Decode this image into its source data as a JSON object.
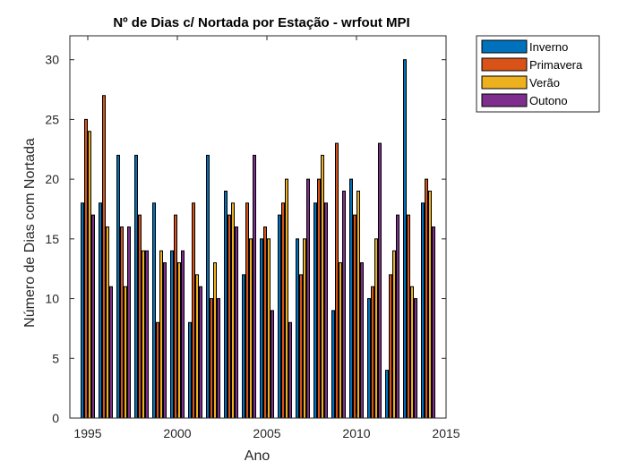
{
  "chart_data": {
    "type": "bar",
    "title": "Nº de Dias c/ Nortada por Estação - wrfout MPI",
    "xlabel": "Ano",
    "ylabel": "Número de Dias com Nortada",
    "xlim": [
      1994,
      2015
    ],
    "ylim": [
      0,
      32
    ],
    "xticks": [
      "1995",
      "2000",
      "2005",
      "2010",
      "2015"
    ],
    "yticks": [
      "0",
      "5",
      "10",
      "15",
      "20",
      "25",
      "30"
    ],
    "legend_position": "top-right outside",
    "grid": false,
    "categories": [
      1995,
      1996,
      1997,
      1998,
      1999,
      2000,
      2001,
      2002,
      2003,
      2004,
      2005,
      2006,
      2007,
      2008,
      2009,
      2010,
      2011,
      2012,
      2013,
      2014
    ],
    "series": [
      {
        "name": "Inverno",
        "color": "#0072BD",
        "values": [
          18,
          18,
          22,
          22,
          18,
          14,
          8,
          22,
          19,
          12,
          15,
          17,
          15,
          18,
          9,
          20,
          10,
          4,
          30,
          18
        ]
      },
      {
        "name": "Primavera",
        "color": "#D95319",
        "values": [
          25,
          27,
          16,
          17,
          8,
          17,
          18,
          10,
          17,
          18,
          16,
          18,
          12,
          20,
          23,
          17,
          11,
          12,
          17,
          20
        ]
      },
      {
        "name": "Verão",
        "color": "#EDB120",
        "values": [
          24,
          16,
          11,
          14,
          14,
          13,
          12,
          13,
          18,
          15,
          15,
          20,
          15,
          22,
          13,
          19,
          15,
          14,
          11,
          19
        ]
      },
      {
        "name": "Outono",
        "color": "#7E2F8E",
        "values": [
          17,
          11,
          16,
          14,
          13,
          14,
          11,
          10,
          16,
          22,
          9,
          8,
          20,
          18,
          19,
          13,
          23,
          17,
          10,
          16
        ]
      }
    ]
  }
}
